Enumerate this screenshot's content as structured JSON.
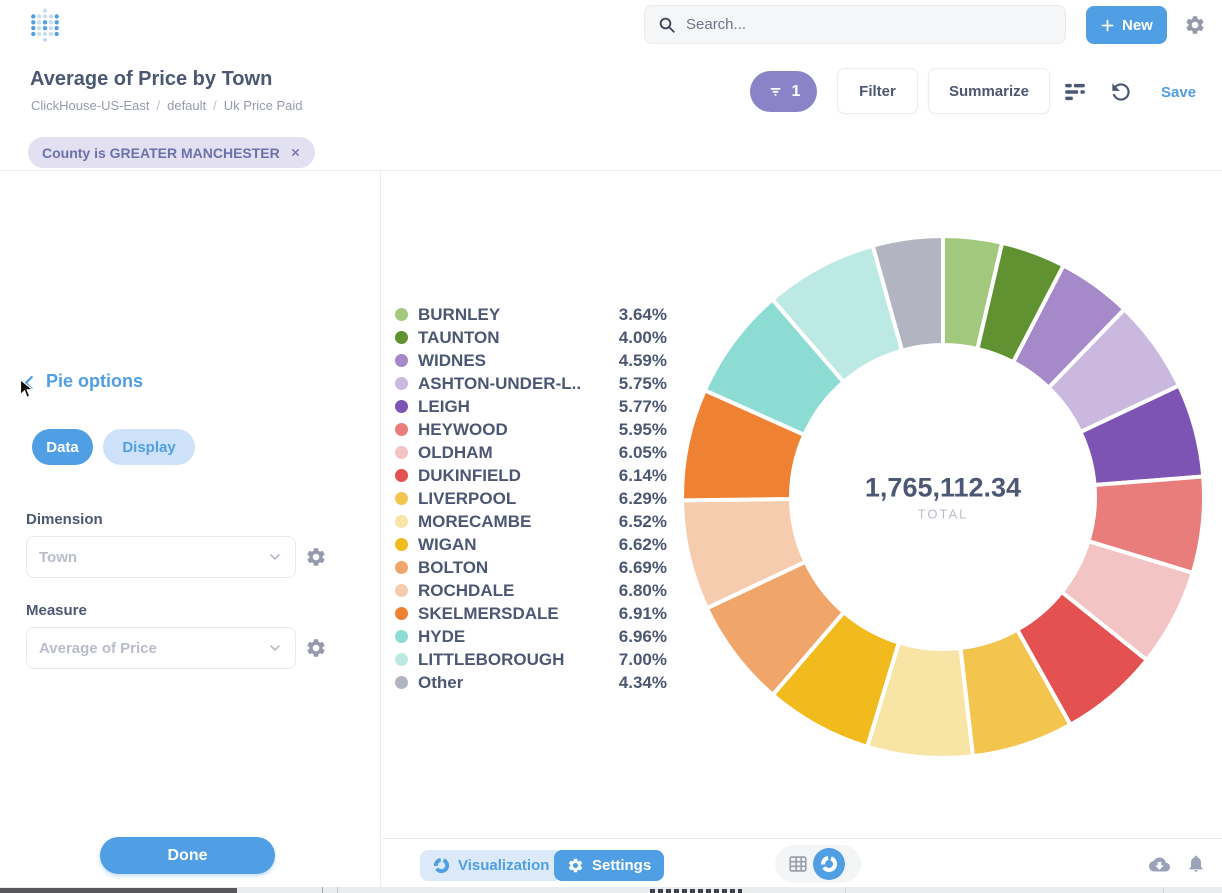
{
  "header": {
    "search_placeholder": "Search...",
    "new_label": "New",
    "accent_color": "#509ee3"
  },
  "question": {
    "title": "Average of Price by Town",
    "breadcrumb": [
      "ClickHouse-US-East",
      "default",
      "Uk Price Paid"
    ]
  },
  "toolbar": {
    "filter_count": "1",
    "filter_label": "Filter",
    "summarize_label": "Summarize",
    "save_label": "Save"
  },
  "filters": {
    "chip_label": "County is GREATER MANCHESTER"
  },
  "sidebar": {
    "title": "Pie options",
    "tabs": {
      "data_label": "Data",
      "display_label": "Display"
    },
    "dimension_label": "Dimension",
    "dimension_value": "Town",
    "measure_label": "Measure",
    "measure_value": "Average of Price",
    "done_label": "Done"
  },
  "footer": {
    "visualization_label": "Visualization",
    "settings_label": "Settings"
  },
  "chart_data": {
    "type": "pie",
    "title": "Average of Price by Town",
    "legend_position": "left",
    "donut": true,
    "total": 1765112.34,
    "total_value": "1,765,112.34",
    "total_label": "TOTAL",
    "categories": [
      "BURNLEY",
      "TAUNTON",
      "WIDNES",
      "ASHTON-UNDER-L..",
      "LEIGH",
      "HEYWOOD",
      "OLDHAM",
      "DUKINFIELD",
      "LIVERPOOL",
      "MORECAMBE",
      "WIGAN",
      "BOLTON",
      "ROCHDALE",
      "SKELMERSDALE",
      "HYDE",
      "LITTLEBOROUGH",
      "Other"
    ],
    "values": [
      3.64,
      4.0,
      4.59,
      5.75,
      5.77,
      5.95,
      6.05,
      6.14,
      6.29,
      6.52,
      6.62,
      6.69,
      6.8,
      6.91,
      6.96,
      7.0,
      4.34
    ],
    "value_labels": [
      "3.64%",
      "4.00%",
      "4.59%",
      "5.75%",
      "5.77%",
      "5.95%",
      "6.05%",
      "6.14%",
      "6.29%",
      "6.52%",
      "6.62%",
      "6.69%",
      "6.80%",
      "6.91%",
      "6.96%",
      "7.00%",
      "4.34%"
    ],
    "colors": [
      "#a2c87d",
      "#609232",
      "#a589c9",
      "#cab8df",
      "#7d53b4",
      "#e87d7b",
      "#f2c4c4",
      "#e35150",
      "#f3c44e",
      "#f8e4a5",
      "#f2bb1d",
      "#f0a56a",
      "#f6ccae",
      "#ee8132",
      "#8cdcd3",
      "#bce9e3",
      "#b2b5c1"
    ]
  }
}
